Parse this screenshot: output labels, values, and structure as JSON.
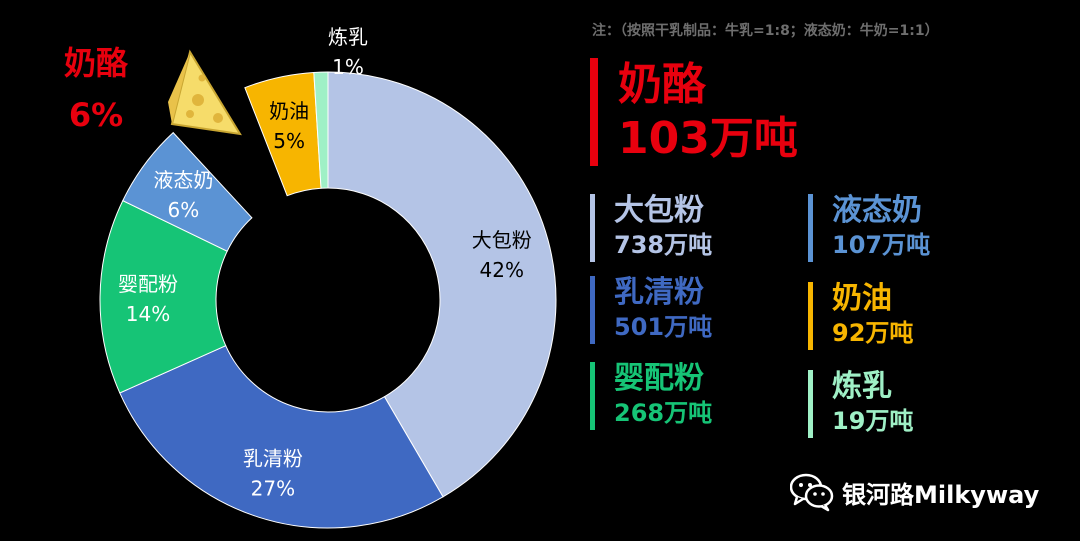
{
  "note": "注：（按照干乳制品：牛乳=1:8；液态奶：牛奶=1:1）",
  "colors": {
    "cheese": "#e8000e",
    "powder": "#b4c4e6",
    "whey": "#3f69c2",
    "infant": "#16c476",
    "liquid": "#5b93d4",
    "butter": "#f7b500",
    "condensed": "#9ff0c6",
    "background": "#000000",
    "watermark": "#ffffff"
  },
  "highlight": {
    "name": "奶酪",
    "value": "103万吨"
  },
  "legend": [
    {
      "name": "大包粉",
      "value": "738万吨",
      "color": "#b4c4e6"
    },
    {
      "name": "液态奶",
      "value": "107万吨",
      "color": "#5b93d4"
    },
    {
      "name": "乳清粉",
      "value": "501万吨",
      "color": "#3f69c2"
    },
    {
      "name": "奶油",
      "value": "92万吨",
      "color": "#f7b500"
    },
    {
      "name": "婴配粉",
      "value": "268万吨",
      "color": "#16c476"
    },
    {
      "name": "炼乳",
      "value": "19万吨",
      "color": "#9ff0c6"
    }
  ],
  "watermark": {
    "text": "银河路Milkyway",
    "icon": "wechat-icon"
  },
  "decoration": {
    "icon": "cheese-icon"
  },
  "chart_data": {
    "type": "pie",
    "variant": "donut",
    "start_angle_deg": 0,
    "direction": "clockwise",
    "slices": [
      {
        "label": "大包粉",
        "value": 42,
        "display": "42%",
        "color": "#b4c4e6",
        "text_color": "#000000",
        "exploded": false
      },
      {
        "label": "乳清粉",
        "value": 27,
        "display": "27%",
        "color": "#3f69c2",
        "text_color": "#ffffff",
        "exploded": false
      },
      {
        "label": "婴配粉",
        "value": 14,
        "display": "14%",
        "color": "#16c476",
        "text_color": "#ffffff",
        "exploded": false
      },
      {
        "label": "液态奶",
        "value": 6,
        "display": "6%",
        "color": "#5b93d4",
        "text_color": "#ffffff",
        "exploded": false
      },
      {
        "label": "奶酪",
        "value": 6,
        "display": "6%",
        "color": "#e8000e",
        "text_color": "#e8000e",
        "exploded": true
      },
      {
        "label": "奶油",
        "value": 5,
        "display": "5%",
        "color": "#f7b500",
        "text_color": "#000000",
        "exploded": false
      },
      {
        "label": "炼乳",
        "value": 1,
        "display": "1%",
        "color": "#9ff0c6",
        "text_color": "#ffffff",
        "exploded": false
      }
    ]
  }
}
